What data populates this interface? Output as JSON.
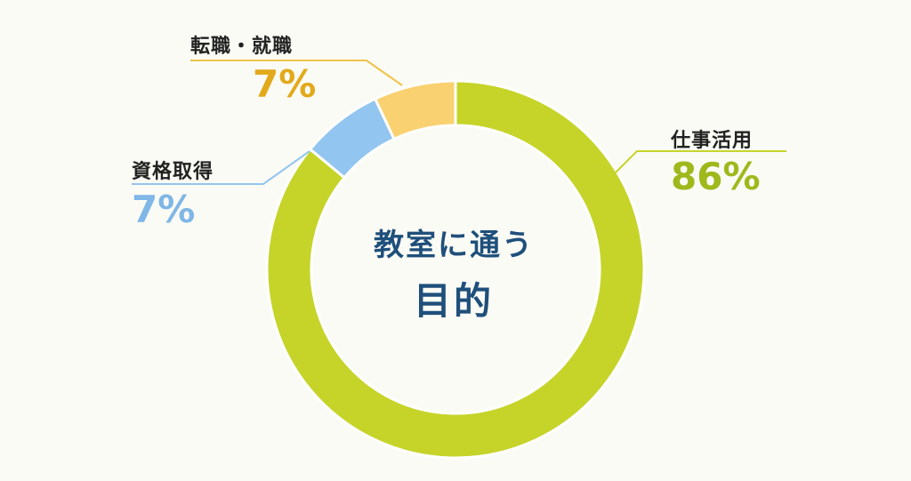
{
  "chart_data": {
    "type": "pie",
    "donut": true,
    "center_label": {
      "line1": "教室に通う",
      "line2": "目的"
    },
    "series": [
      {
        "name": "仕事活用",
        "value": 86,
        "label": "86%",
        "color": "#c6d42a"
      },
      {
        "name": "資格取得",
        "value": 7,
        "label": "7%",
        "color": "#92c5ef"
      },
      {
        "name": "転職・就職",
        "value": 7,
        "label": "7%",
        "color": "#f9d170"
      }
    ],
    "legend": "none",
    "grid": false
  }
}
